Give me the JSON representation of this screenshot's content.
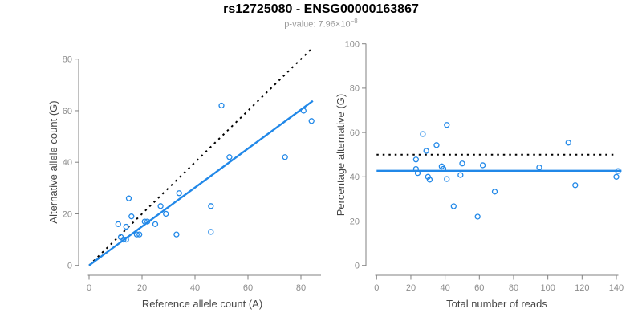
{
  "header": {
    "title": "rs12725080 - ENSG00000163867",
    "pvalue_base": "p-value: 7.96×10",
    "pvalue_exponent": "−8"
  },
  "colors": {
    "points": "#2188E8",
    "fit_line": "#2188E8",
    "identity_line": "#000000",
    "axis": "#828282",
    "tick_label": "#8c8c8c",
    "axis_title": "#454545",
    "subtitle": "#9a9a9a"
  },
  "chart_data": [
    {
      "type": "scatter",
      "panel": "allele-counts",
      "xlabel": "Reference allele count (A)",
      "ylabel": "Alternative allele count (G)",
      "xlim": [
        0,
        85
      ],
      "ylim": [
        0,
        85
      ],
      "xticks": [
        0,
        20,
        40,
        60,
        80
      ],
      "yticks": [
        0,
        20,
        40,
        60,
        80
      ],
      "grid": false,
      "points": [
        [
          11,
          16
        ],
        [
          12,
          11
        ],
        [
          13,
          10
        ],
        [
          14,
          10
        ],
        [
          14,
          15
        ],
        [
          15,
          26
        ],
        [
          16,
          19
        ],
        [
          18,
          12
        ],
        [
          19,
          12
        ],
        [
          21,
          17
        ],
        [
          22,
          17
        ],
        [
          25,
          16
        ],
        [
          27,
          23
        ],
        [
          29,
          20
        ],
        [
          33,
          12
        ],
        [
          34,
          28
        ],
        [
          46,
          13
        ],
        [
          46,
          23
        ],
        [
          50,
          62
        ],
        [
          53,
          42
        ],
        [
          74,
          42
        ],
        [
          81,
          60
        ],
        [
          84,
          56
        ]
      ],
      "lines": [
        {
          "name": "identity",
          "style": "dotted",
          "color": "#000000",
          "slope": 1,
          "intercept": 0,
          "x_range": [
            0,
            84.5
          ]
        },
        {
          "name": "fit",
          "style": "solid",
          "color": "#2188E8",
          "slope": 0.755,
          "intercept": 0,
          "x_range": [
            0,
            84.5
          ]
        }
      ]
    },
    {
      "type": "scatter",
      "panel": "percentage-by-coverage",
      "xlabel": "Total number of reads",
      "ylabel": "Percentage alternative (G)",
      "xlim": [
        0,
        143
      ],
      "ylim": [
        0,
        100
      ],
      "xticks": [
        0,
        20,
        40,
        60,
        80,
        100,
        120,
        140
      ],
      "yticks": [
        0,
        20,
        40,
        60,
        80,
        100
      ],
      "grid": false,
      "points": [
        [
          27,
          59.3
        ],
        [
          23,
          47.8
        ],
        [
          23,
          43.5
        ],
        [
          24,
          41.7
        ],
        [
          29,
          51.7
        ],
        [
          41,
          63.4
        ],
        [
          35,
          54.3
        ],
        [
          30,
          40.0
        ],
        [
          31,
          38.7
        ],
        [
          38,
          44.7
        ],
        [
          39,
          43.6
        ],
        [
          41,
          39.0
        ],
        [
          50,
          46.0
        ],
        [
          49,
          40.8
        ],
        [
          45,
          26.7
        ],
        [
          62,
          45.2
        ],
        [
          59,
          22.0
        ],
        [
          69,
          33.3
        ],
        [
          112,
          55.4
        ],
        [
          95,
          44.2
        ],
        [
          116,
          36.2
        ],
        [
          141,
          42.6
        ],
        [
          140,
          40.0
        ]
      ],
      "lines": [
        {
          "name": "expected-50pct",
          "style": "dotted",
          "color": "#000000",
          "y": 50,
          "x_range": [
            0,
            140
          ]
        },
        {
          "name": "mean-percentage",
          "style": "solid",
          "color": "#2188E8",
          "y": 42.7,
          "x_range": [
            0,
            143
          ]
        }
      ]
    }
  ]
}
